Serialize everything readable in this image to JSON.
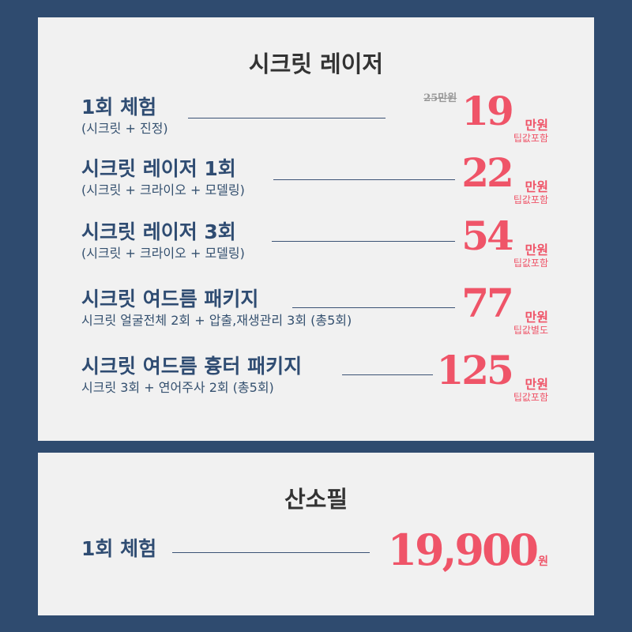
{
  "laser": {
    "title": "시크릿 레이저",
    "items": [
      {
        "name": "1회 체험",
        "sub": "(시크릿 + 진정)",
        "old_price": "25만원",
        "price": "19",
        "unit": "만원",
        "note": "팁값포함"
      },
      {
        "name": "시크릿 레이저 1회",
        "sub": "(시크릿 + 크라이오 + 모델링)",
        "price": "22",
        "unit": "만원",
        "note": "팁값포함"
      },
      {
        "name": "시크릿 레이저 3회",
        "sub": "(시크릿 + 크라이오 + 모델링)",
        "price": "54",
        "unit": "만원",
        "note": "팁값포함"
      },
      {
        "name": "시크릿 여드름 패키지",
        "sub": "시크릿 얼굴전체 2회 + 압출,재생관리 3회 (총5회)",
        "price": "77",
        "unit": "만원",
        "note": "팁값별도"
      },
      {
        "name": "시크릿 여드름 흉터 패키지",
        "sub": "시크릿 3회 + 연어주사 2회 (총5회)",
        "price": "125",
        "unit": "만원",
        "note": "팁값포함"
      }
    ]
  },
  "sansopil": {
    "title": "산소필",
    "items": [
      {
        "name": "1회 체험",
        "price": "19,900",
        "unit": "원"
      }
    ]
  },
  "colors": {
    "background": "#2f4b6f",
    "card": "#f1f1f1",
    "accent": "#ef5468",
    "text": "#2f4c72"
  }
}
